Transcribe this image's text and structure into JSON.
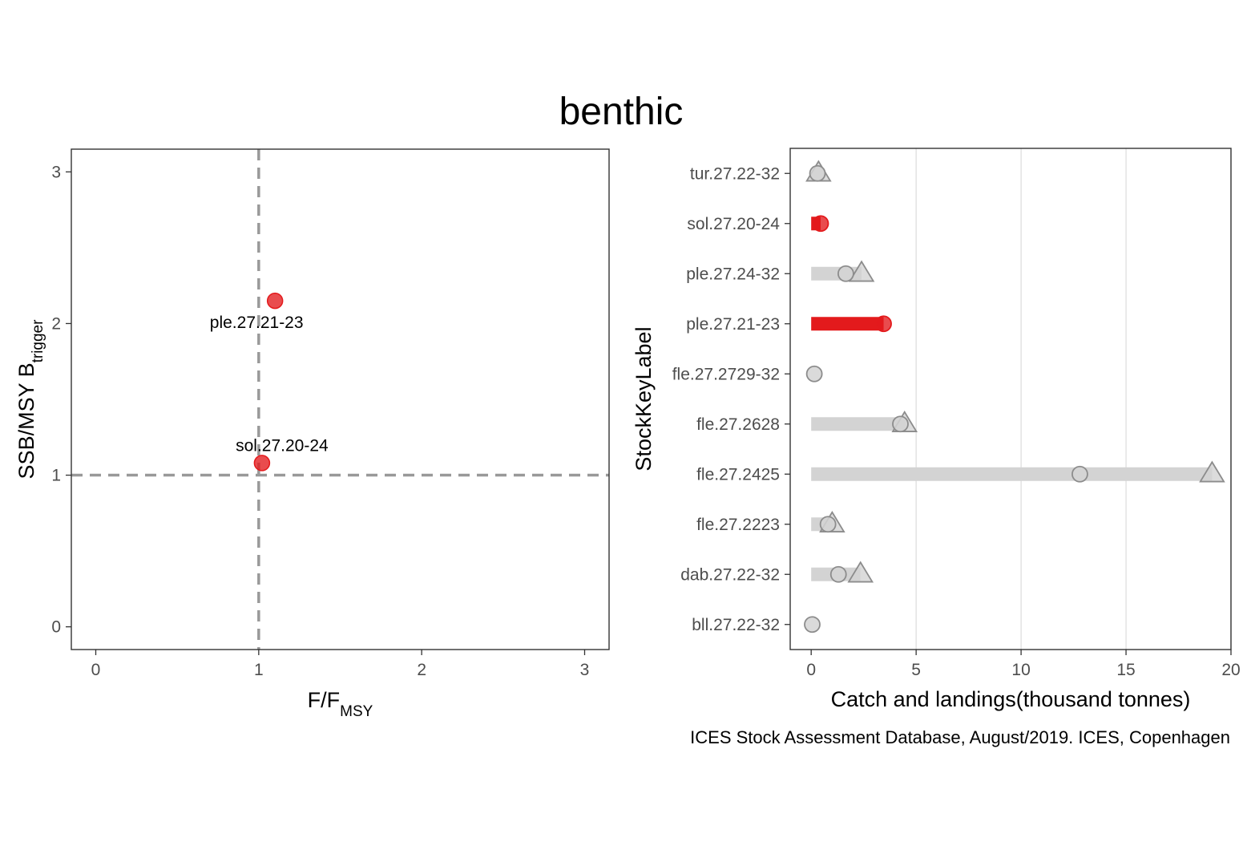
{
  "title": "benthic",
  "caption": "ICES Stock Assessment Database, August/2019. ICES, Copenhagen",
  "colors": {
    "status_red": "#e31a1c",
    "status_grey": "#d3d3d3",
    "marker_stroke": "#8c8c8c",
    "refline": "#999999",
    "gridline": "#dcdcdc",
    "tick_text": "#4d4d4d",
    "panel_border": "#333333"
  },
  "kobe": {
    "xlabel_main": "F/F",
    "xlabel_sub": "MSY",
    "ylabel_main": "SSB/MSY B",
    "ylabel_sub": "trigger"
  },
  "bars": {
    "ylabel": "StockKeyLabel",
    "xlabel": "Catch and landings(thousand tonnes)"
  },
  "chart_data": [
    {
      "type": "scatter",
      "xlim": [
        -0.15,
        3.15
      ],
      "ylim": [
        -0.15,
        3.15
      ],
      "x_ticks": [
        0,
        1,
        2,
        3
      ],
      "y_ticks": [
        0,
        1,
        2,
        3
      ],
      "reference_lines": {
        "x": 1,
        "y": 1,
        "style": "dashed"
      },
      "grid": false,
      "points": [
        {
          "label": "ple.27.21-23",
          "x": 1.1,
          "y": 2.15,
          "status": "red",
          "label_position": "below-left"
        },
        {
          "label": "sol.27.20-24",
          "x": 1.02,
          "y": 1.08,
          "status": "red",
          "label_position": "above"
        }
      ]
    },
    {
      "type": "bar",
      "orientation": "horizontal",
      "xlim": [
        -1,
        20
      ],
      "x_ticks": [
        0,
        5,
        10,
        15,
        20
      ],
      "grid": "vertical-major",
      "legend": "none",
      "categories": [
        "tur.27.22-32",
        "sol.27.20-24",
        "ple.27.24-32",
        "ple.27.21-23",
        "fle.27.2729-32",
        "fle.27.2628",
        "fle.27.2425",
        "fle.27.2223",
        "dab.27.22-32",
        "bll.27.22-32"
      ],
      "series": [
        {
          "name": "",
          "marker": "circle",
          "values": [
            0.3,
            0.45,
            1.65,
            3.45,
            0.15,
            4.25,
            12.8,
            0.8,
            1.3,
            0.05
          ]
        },
        {
          "name": "",
          "marker": "triangle",
          "values": [
            0.35,
            null,
            2.4,
            null,
            null,
            4.45,
            19.1,
            1.0,
            2.35,
            null
          ]
        }
      ],
      "bar_lengths": [
        0.0,
        0.45,
        2.4,
        3.45,
        0.0,
        4.45,
        19.1,
        1.0,
        2.35,
        0.0
      ],
      "bar_status": [
        "grey",
        "red",
        "grey",
        "red",
        "grey",
        "grey",
        "grey",
        "grey",
        "grey",
        "grey"
      ]
    }
  ]
}
